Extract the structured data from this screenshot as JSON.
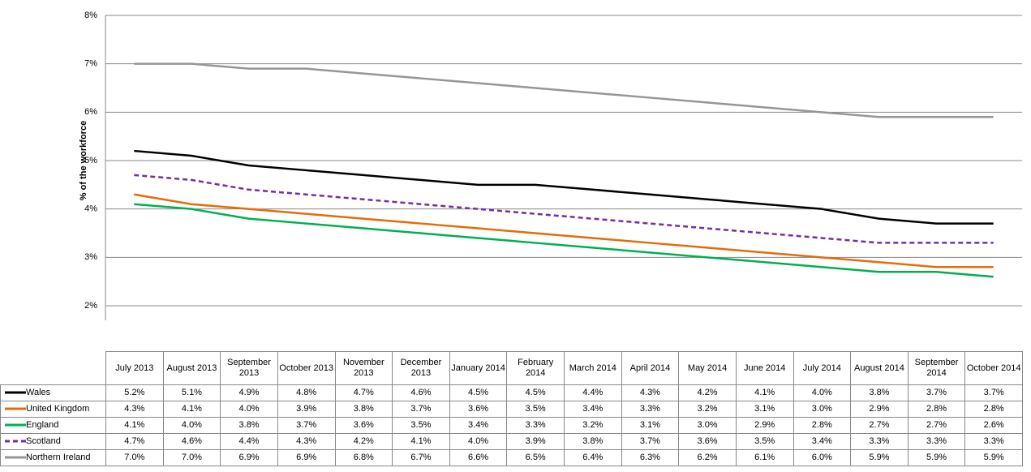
{
  "chart_data": {
    "type": "line",
    "y_label": "% of the workforce",
    "categories": [
      "July 2013",
      "August 2013",
      "September 2013",
      "October 2013",
      "November 2013",
      "December 2013",
      "January 2014",
      "February 2014",
      "March 2014",
      "April 2014",
      "May 2014",
      "June 2014",
      "July 2014",
      "August 2014",
      "September 2014",
      "October 2014"
    ],
    "ylim": [
      2,
      8
    ],
    "yticks": [
      {
        "value": 2,
        "label": "2%"
      },
      {
        "value": 3,
        "label": "3%"
      },
      {
        "value": 4,
        "label": "4%"
      },
      {
        "value": 5,
        "label": "5%"
      },
      {
        "value": 6,
        "label": "6%"
      },
      {
        "value": 7,
        "label": "7%"
      },
      {
        "value": 8,
        "label": "8%"
      }
    ],
    "grid": true,
    "series": [
      {
        "name": "Wales",
        "color": "#000000",
        "style": "solid",
        "values": [
          5.2,
          5.1,
          4.9,
          4.8,
          4.7,
          4.6,
          4.5,
          4.5,
          4.4,
          4.3,
          4.2,
          4.1,
          4.0,
          3.8,
          3.7,
          3.7
        ],
        "value_labels": [
          "5.2%",
          "5.1%",
          "4.9%",
          "4.8%",
          "4.7%",
          "4.6%",
          "4.5%",
          "4.5%",
          "4.4%",
          "4.3%",
          "4.2%",
          "4.1%",
          "4.0%",
          "3.8%",
          "3.7%",
          "3.7%"
        ]
      },
      {
        "name": "United Kingdom",
        "color": "#e46c0a",
        "style": "solid",
        "values": [
          4.3,
          4.1,
          4.0,
          3.9,
          3.8,
          3.7,
          3.6,
          3.5,
          3.4,
          3.3,
          3.2,
          3.1,
          3.0,
          2.9,
          2.8,
          2.8
        ],
        "value_labels": [
          "4.3%",
          "4.1%",
          "4.0%",
          "3.9%",
          "3.8%",
          "3.7%",
          "3.6%",
          "3.5%",
          "3.4%",
          "3.3%",
          "3.2%",
          "3.1%",
          "3.0%",
          "2.9%",
          "2.8%",
          "2.8%"
        ]
      },
      {
        "name": "England",
        "color": "#00b050",
        "style": "solid",
        "values": [
          4.1,
          4.0,
          3.8,
          3.7,
          3.6,
          3.5,
          3.4,
          3.3,
          3.2,
          3.1,
          3.0,
          2.9,
          2.8,
          2.7,
          2.7,
          2.6
        ],
        "value_labels": [
          "4.1%",
          "4.0%",
          "3.8%",
          "3.7%",
          "3.6%",
          "3.5%",
          "3.4%",
          "3.3%",
          "3.2%",
          "3.1%",
          "3.0%",
          "2.9%",
          "2.8%",
          "2.7%",
          "2.7%",
          "2.6%"
        ]
      },
      {
        "name": "Scotland",
        "color": "#7030a0",
        "style": "dashed",
        "values": [
          4.7,
          4.6,
          4.4,
          4.3,
          4.2,
          4.1,
          4.0,
          3.9,
          3.8,
          3.7,
          3.6,
          3.5,
          3.4,
          3.3,
          3.3,
          3.3
        ],
        "value_labels": [
          "4.7%",
          "4.6%",
          "4.4%",
          "4.3%",
          "4.2%",
          "4.1%",
          "4.0%",
          "3.9%",
          "3.8%",
          "3.7%",
          "3.6%",
          "3.5%",
          "3.4%",
          "3.3%",
          "3.3%",
          "3.3%"
        ]
      },
      {
        "name": "Northern Ireland",
        "color": "#969696",
        "style": "solid",
        "values": [
          7.0,
          7.0,
          6.9,
          6.9,
          6.8,
          6.7,
          6.6,
          6.5,
          6.4,
          6.3,
          6.2,
          6.1,
          6.0,
          5.9,
          5.9,
          5.9
        ],
        "value_labels": [
          "7.0%",
          "7.0%",
          "6.9%",
          "6.9%",
          "6.8%",
          "6.7%",
          "6.6%",
          "6.5%",
          "6.4%",
          "6.3%",
          "6.2%",
          "6.1%",
          "6.0%",
          "5.9%",
          "5.9%",
          "5.9%"
        ]
      }
    ]
  }
}
